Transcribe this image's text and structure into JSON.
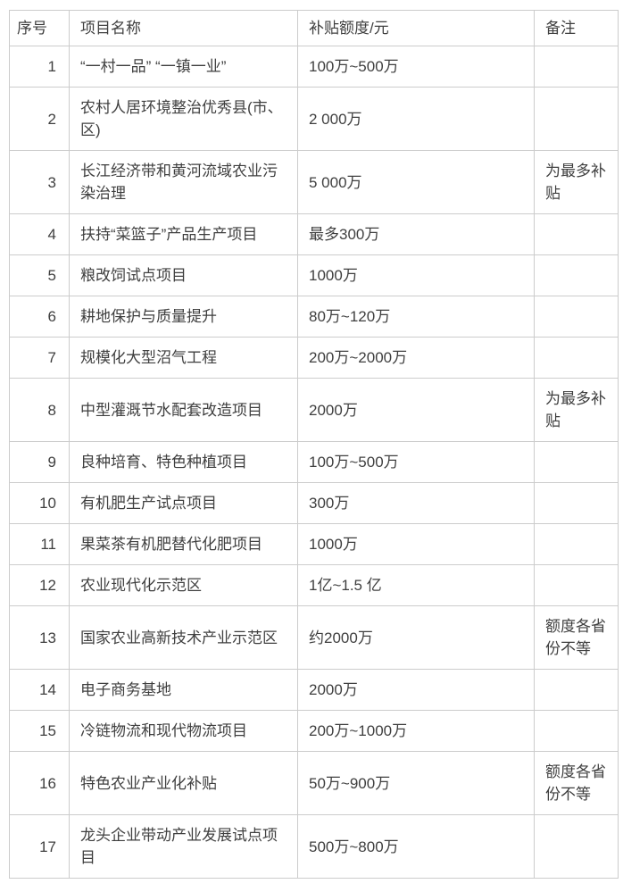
{
  "colors": {
    "border": "#cccccc",
    "text": "#3f3f3f",
    "background": "#ffffff"
  },
  "table": {
    "columns": [
      "序号",
      "项目名称",
      "补贴额度/元",
      "备注"
    ],
    "rows": [
      {
        "no": "1",
        "name": "“一村一品” “一镇一业”",
        "amount": "100万~500万",
        "note": ""
      },
      {
        "no": "2",
        "name": "农村人居环境整治优秀县(市、区)",
        "amount": "2 000万",
        "note": ""
      },
      {
        "no": "3",
        "name": "长江经济带和黄河流域农业污染治理",
        "amount": "5 000万",
        "note": "为最多补贴"
      },
      {
        "no": "4",
        "name": "扶持“菜篮子”产品生产项目",
        "amount": "最多300万",
        "note": ""
      },
      {
        "no": "5",
        "name": "粮改饲试点项目",
        "amount": "1000万",
        "note": ""
      },
      {
        "no": "6",
        "name": "耕地保护与质量提升",
        "amount": "80万~120万",
        "note": ""
      },
      {
        "no": "7",
        "name": "规模化大型沼气工程",
        "amount": "200万~2000万",
        "note": ""
      },
      {
        "no": "8",
        "name": "中型灌溉节水配套改造项目",
        "amount": "2000万",
        "note": "为最多补贴"
      },
      {
        "no": "9",
        "name": "良种培育、特色种植项目",
        "amount": "100万~500万",
        "note": ""
      },
      {
        "no": "10",
        "name": "有机肥生产试点项目",
        "amount": "300万",
        "note": ""
      },
      {
        "no": "11",
        "name": "果菜茶有机肥替代化肥项目",
        "amount": "1000万",
        "note": ""
      },
      {
        "no": "12",
        "name": "农业现代化示范区",
        "amount": "1亿~1.5 亿",
        "note": ""
      },
      {
        "no": "13",
        "name": "国家农业高新技术产业示范区",
        "amount": "约2000万",
        "note": "额度各省份不等"
      },
      {
        "no": "14",
        "name": "电子商务基地",
        "amount": "2000万",
        "note": ""
      },
      {
        "no": "15",
        "name": "冷链物流和现代物流项目",
        "amount": "200万~1000万",
        "note": ""
      },
      {
        "no": "16",
        "name": "特色农业产业化补贴",
        "amount": "50万~900万",
        "note": "额度各省份不等"
      },
      {
        "no": "17",
        "name": "龙头企业带动产业发展试点项目",
        "amount": "500万~800万",
        "note": ""
      }
    ]
  }
}
